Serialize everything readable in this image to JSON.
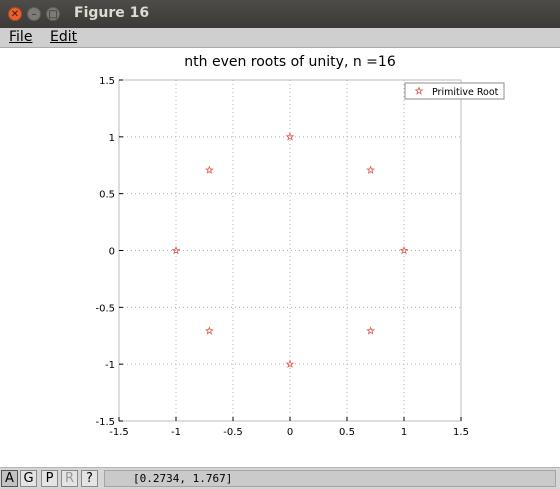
{
  "window": {
    "title": "Figure 16"
  },
  "menu": {
    "file_label": "File",
    "edit_label": "Edit"
  },
  "toolbar": {
    "buttons": [
      {
        "label": "A",
        "state": "pressed"
      },
      {
        "label": "G",
        "state": "normal"
      },
      {
        "label": "P",
        "state": "normal"
      },
      {
        "label": "R",
        "state": "disabled"
      },
      {
        "label": "?",
        "state": "normal"
      }
    ],
    "coordinates": "[0.2734, 1.767]"
  },
  "colors": {
    "marker": "#e0584a",
    "grid": "#b0b0b0",
    "titlebar": "#3f3e3a"
  },
  "chart_data": {
    "type": "scatter",
    "title": "nth even roots of unity, n =16",
    "xlabel": "",
    "ylabel": "",
    "xlim": [
      -1.5,
      1.5
    ],
    "ylim": [
      -1.5,
      1.5
    ],
    "grid": true,
    "legend_position": "top-right",
    "xticks": [
      -1.5,
      -1,
      -0.5,
      0,
      0.5,
      1,
      1.5
    ],
    "yticks": [
      -1.5,
      -1,
      -0.5,
      0,
      0.5,
      1,
      1.5
    ],
    "xtick_labels": [
      "-1.5",
      "-1",
      "-0.5",
      "0",
      "0.5",
      "1",
      "1.5"
    ],
    "ytick_labels": [
      "-1.5",
      "-1",
      "-0.5",
      "0",
      "0.5",
      "1",
      "1.5"
    ],
    "series": [
      {
        "name": "Primitive Root",
        "marker": "star",
        "color": "#e0584a",
        "points": [
          [
            1,
            0
          ],
          [
            0.7071,
            0.7071
          ],
          [
            0,
            1
          ],
          [
            -0.7071,
            0.7071
          ],
          [
            -1,
            0
          ],
          [
            -0.7071,
            -0.7071
          ],
          [
            0,
            -1
          ],
          [
            0.7071,
            -0.7071
          ]
        ]
      }
    ]
  }
}
